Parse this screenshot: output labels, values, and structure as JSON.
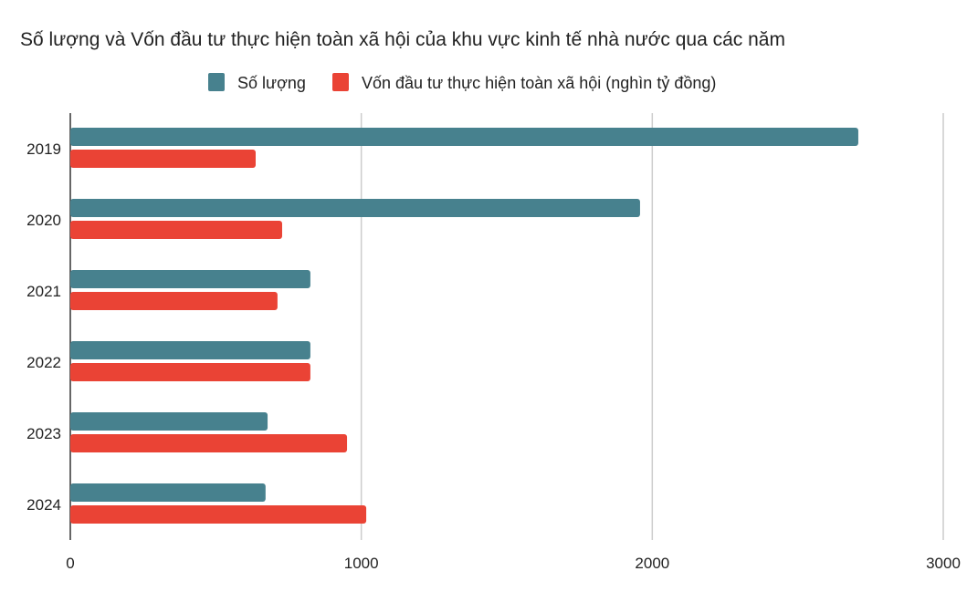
{
  "chart_data": {
    "type": "bar",
    "orientation": "horizontal",
    "title": "Số lượng và Vốn đầu tư thực hiện  toàn xã hội của khu vực kinh tế nhà nước qua các năm",
    "categories": [
      "2019",
      "2020",
      "2021",
      "2022",
      "2023",
      "2024"
    ],
    "series": [
      {
        "name": "Số lượng",
        "color": "#47818e",
        "values": [
          2708,
          1958,
          825,
          825,
          678,
          671
        ]
      },
      {
        "name": "Vốn đầu tư thực hiện  toàn xã hội (nghìn tỷ đồng)",
        "color": "#ea4335",
        "values": [
          637,
          728,
          712,
          825,
          951,
          1017
        ]
      }
    ],
    "xlim": [
      0,
      3000
    ],
    "xticks": [
      "0",
      "1000",
      "2000",
      "3000"
    ],
    "grid": true,
    "legend": "top"
  }
}
